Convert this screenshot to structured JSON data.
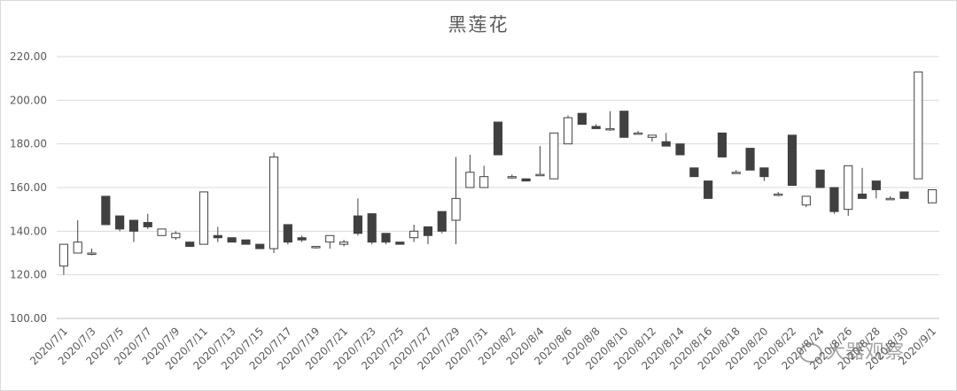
{
  "chart_data": {
    "type": "candlestick",
    "title": "黑莲花",
    "xlabel": "",
    "ylabel": "",
    "ylim": [
      100,
      220
    ],
    "y_ticks": [
      "100.00",
      "120.00",
      "140.00",
      "160.00",
      "180.00",
      "200.00",
      "220.00"
    ],
    "grid": true,
    "x_tick_labels": [
      "2020/7/1",
      "2020/7/3",
      "2020/7/5",
      "2020/7/7",
      "2020/7/9",
      "2020/7/11",
      "2020/7/13",
      "2020/7/15",
      "2020/7/17",
      "2020/7/19",
      "2020/7/21",
      "2020/7/23",
      "2020/7/25",
      "2020/7/27",
      "2020/7/29",
      "2020/7/31",
      "2020/8/2",
      "2020/8/4",
      "2020/8/6",
      "2020/8/8",
      "2020/8/10",
      "2020/8/12",
      "2020/8/14",
      "2020/8/16",
      "2020/8/18",
      "2020/8/20",
      "2020/8/22",
      "2020/8/24",
      "2020/8/26",
      "2020/8/28",
      "2020/8/30",
      "2020/9/1"
    ],
    "x": [
      "2020/7/1",
      "2020/7/2",
      "2020/7/3",
      "2020/7/4",
      "2020/7/5",
      "2020/7/6",
      "2020/7/7",
      "2020/7/8",
      "2020/7/9",
      "2020/7/10",
      "2020/7/11",
      "2020/7/12",
      "2020/7/13",
      "2020/7/14",
      "2020/7/15",
      "2020/7/16",
      "2020/7/17",
      "2020/7/18",
      "2020/7/19",
      "2020/7/20",
      "2020/7/21",
      "2020/7/22",
      "2020/7/23",
      "2020/7/24",
      "2020/7/25",
      "2020/7/26",
      "2020/7/27",
      "2020/7/28",
      "2020/7/29",
      "2020/7/30",
      "2020/7/31",
      "2020/8/1",
      "2020/8/2",
      "2020/8/3",
      "2020/8/4",
      "2020/8/5",
      "2020/8/6",
      "2020/8/7",
      "2020/8/8",
      "2020/8/9",
      "2020/8/10",
      "2020/8/11",
      "2020/8/12",
      "2020/8/13",
      "2020/8/14",
      "2020/8/15",
      "2020/8/16",
      "2020/8/17",
      "2020/8/18",
      "2020/8/19",
      "2020/8/20",
      "2020/8/21",
      "2020/8/22",
      "2020/8/23",
      "2020/8/24",
      "2020/8/25",
      "2020/8/26",
      "2020/8/27",
      "2020/8/28",
      "2020/8/29",
      "2020/8/30",
      "2020/8/31",
      "2020/9/1"
    ],
    "open": [
      124,
      130,
      130,
      156,
      147,
      145,
      144,
      138,
      137,
      135,
      134,
      138,
      137,
      136,
      134,
      132,
      143,
      137,
      133,
      135,
      134,
      147,
      148,
      139,
      135,
      137,
      142,
      149,
      145,
      160,
      160,
      190,
      165,
      164,
      166,
      164,
      180,
      194,
      188,
      187,
      195,
      185,
      183,
      181,
      180,
      169,
      163,
      185,
      167,
      178,
      169,
      157,
      184,
      152,
      168,
      160,
      150,
      157,
      163,
      155,
      158,
      164,
      153
    ],
    "close": [
      134,
      135,
      130,
      143,
      141,
      140,
      142,
      141,
      139,
      133,
      158,
      137,
      135,
      134,
      132,
      174,
      135,
      136,
      133,
      138,
      135,
      139,
      135,
      135,
      134,
      140,
      138,
      140,
      155,
      167,
      165,
      175,
      165,
      163,
      166,
      185,
      192,
      189,
      187,
      187,
      183,
      185,
      184,
      179,
      175,
      165,
      155,
      174,
      167,
      168,
      165,
      157,
      161,
      156,
      160,
      149,
      170,
      155,
      159,
      155,
      155,
      213,
      159
    ],
    "high": [
      134,
      145,
      132,
      156,
      147,
      145,
      148,
      141,
      140,
      135,
      158,
      142,
      137,
      136,
      134,
      176,
      143,
      138,
      133,
      138,
      136,
      155,
      148,
      139,
      135,
      143,
      142,
      149,
      174,
      175,
      170,
      190,
      166,
      164,
      179,
      185,
      193,
      194,
      189,
      195,
      195,
      186,
      184,
      185,
      180,
      169,
      163,
      185,
      168,
      178,
      169,
      158,
      184,
      156,
      168,
      160,
      170,
      169,
      163,
      156,
      158,
      213,
      159
    ],
    "low": [
      120,
      130,
      129,
      143,
      140,
      135,
      141,
      138,
      136,
      133,
      134,
      135,
      135,
      134,
      132,
      130,
      134,
      135,
      132,
      132,
      133,
      138,
      134,
      134,
      134,
      135,
      134,
      139,
      134,
      160,
      160,
      175,
      164,
      163,
      166,
      164,
      180,
      189,
      187,
      186,
      183,
      185,
      181,
      179,
      175,
      165,
      155,
      174,
      167,
      168,
      163,
      156,
      161,
      151,
      160,
      148,
      147,
      155,
      155,
      155,
      155,
      164,
      153
    ]
  },
  "watermark_text": "大器观察"
}
